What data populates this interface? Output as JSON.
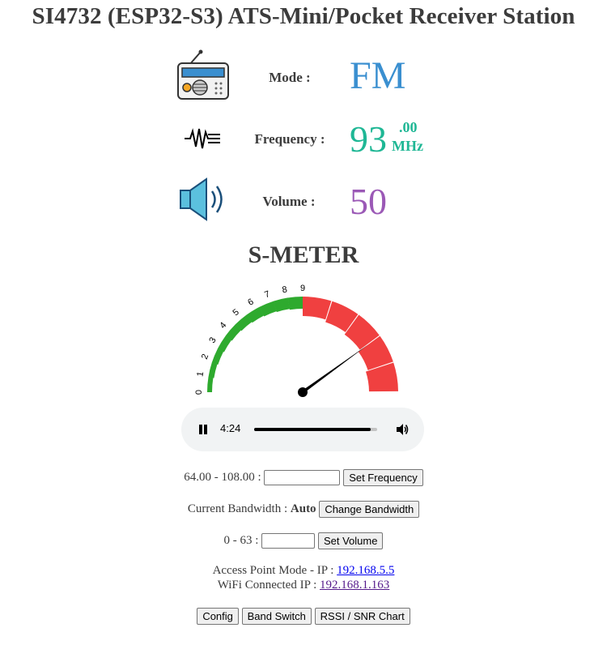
{
  "title": "SI4732 (ESP32-S3) ATS-Mini/Pocket Receiver Station",
  "mode": {
    "label": "Mode :",
    "value": "FM",
    "icon": "radio-icon"
  },
  "frequency": {
    "label": "Frequency :",
    "integer": "93",
    "decimal": ".00",
    "unit": "MHz",
    "icon": "signal-wave-icon"
  },
  "volume": {
    "label": "Volume :",
    "value": "50",
    "icon": "speaker-icon"
  },
  "smeter": {
    "title": "S-METER",
    "scale_labels": [
      "0",
      "1",
      "2",
      "3",
      "4",
      "5",
      "6",
      "7",
      "8",
      "9"
    ],
    "needle_level": 0.8,
    "colors": {
      "low": "#2eaa2e",
      "high": "#f04040"
    }
  },
  "player": {
    "time": "4:24",
    "progress": 0.95
  },
  "freq_form": {
    "range": "64.00 - 108.00 :",
    "button": "Set Frequency",
    "input_value": ""
  },
  "bandwidth_form": {
    "label": "Current Bandwidth :",
    "value": "Auto",
    "button": "Change Bandwidth"
  },
  "volume_form": {
    "range": "0 - 63 :",
    "button": "Set Volume",
    "input_value": ""
  },
  "network": {
    "ap_label": "Access Point Mode - IP :",
    "ap_ip": "192.168.5.5",
    "wifi_label": "WiFi Connected IP :",
    "wifi_ip": "192.168.1.163"
  },
  "nav": {
    "config": "Config",
    "band_switch": "Band Switch",
    "chart": "RSSI / SNR Chart"
  }
}
